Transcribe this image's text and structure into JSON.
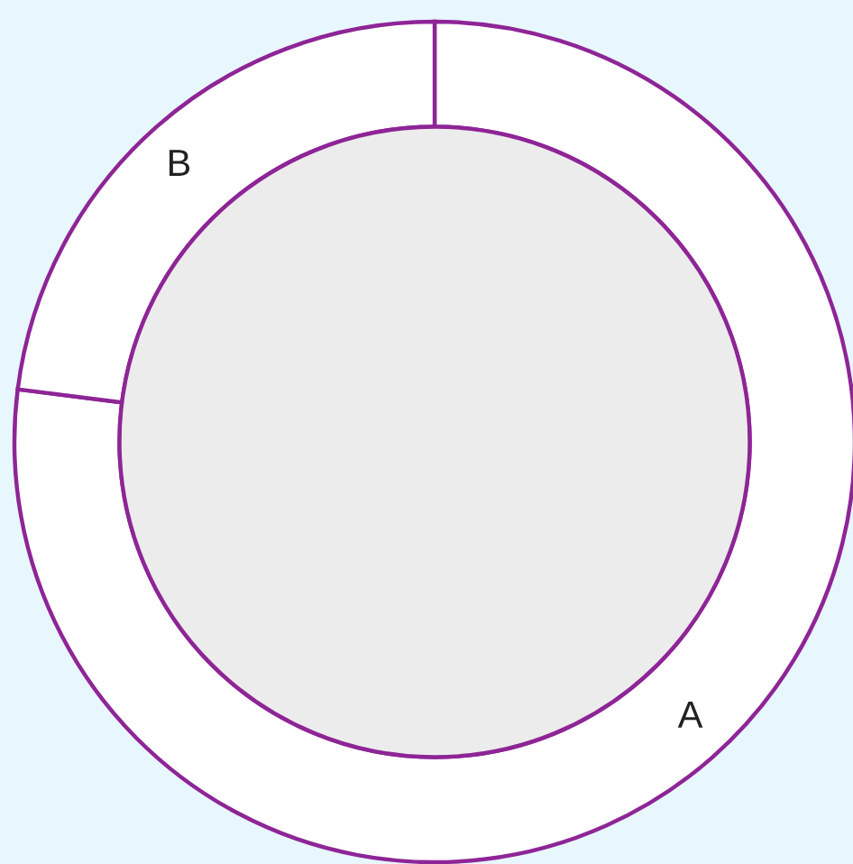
{
  "chart_data": {
    "type": "donut",
    "categories": [
      "A",
      "B"
    ],
    "values": [
      77,
      23
    ],
    "colors": [
      "#ffffff",
      "#ffffff"
    ]
  }
}
